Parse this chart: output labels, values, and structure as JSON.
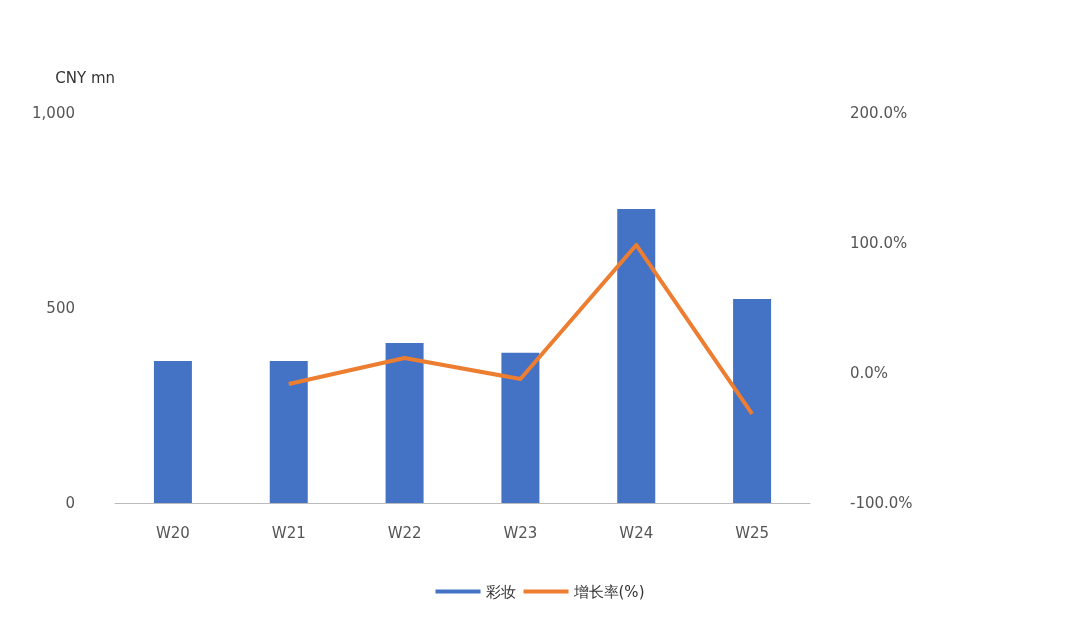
{
  "chart_data": {
    "type": "bar",
    "ylabel": "CNY mn",
    "categories": [
      "W20",
      "W21",
      "W22",
      "W23",
      "W24",
      "W25"
    ],
    "series": [
      {
        "name": "彩妆",
        "color": "#4472c4",
        "values": [
          364,
          364,
          410,
          385,
          754,
          523
        ]
      },
      {
        "name": "增长率(%)",
        "type": "line",
        "axis": "y2",
        "color": "#ed7d31",
        "marker": "none",
        "values": [
          null,
          -8.5,
          11.5,
          -4.6,
          98.5,
          -31.5
        ]
      }
    ],
    "ylim": [
      0,
      1000
    ],
    "yticks": [
      0,
      500,
      {
        "value": 1000,
        "label": "1,000"
      }
    ],
    "y2lim": [
      -100,
      200
    ],
    "y2ticks": [
      {
        "value": -100,
        "label": "-100.0%"
      },
      {
        "value": 0,
        "label": "0.0%"
      },
      {
        "value": 100,
        "label": "100.0%"
      },
      {
        "value": 200,
        "label": "200.0%"
      }
    ],
    "grid": false,
    "legend": "bottom"
  }
}
